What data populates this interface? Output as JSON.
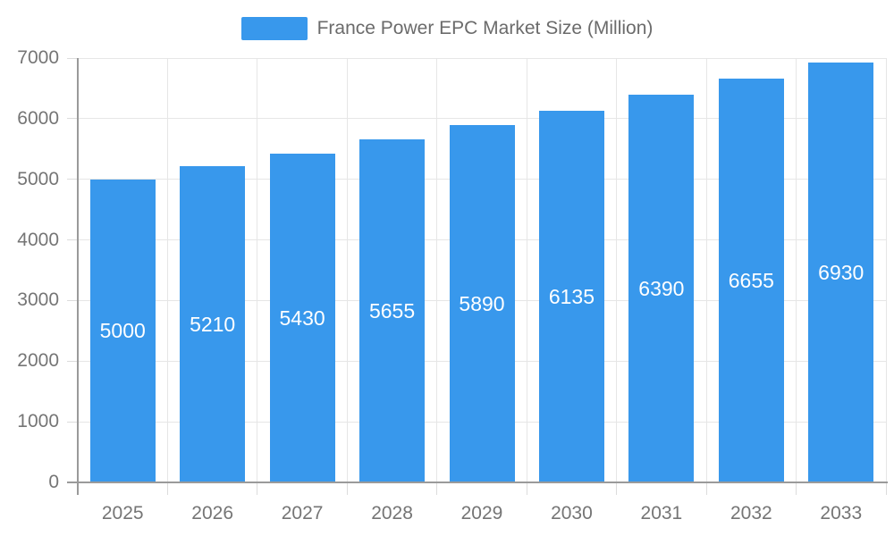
{
  "chart_data": {
    "type": "bar",
    "title": "France Power EPC Market Size (Million)",
    "legend": [
      {
        "label": "France Power EPC Market Size (Million)",
        "color": "#3898EC"
      }
    ],
    "legend_position": "top-center",
    "categories": [
      "2025",
      "2026",
      "2027",
      "2028",
      "2029",
      "2030",
      "2031",
      "2032",
      "2033"
    ],
    "series": [
      {
        "name": "France Power EPC Market Size (Million)",
        "values": [
          5000,
          5210,
          5430,
          5655,
          5890,
          6135,
          6390,
          6655,
          6930
        ]
      }
    ],
    "bar_value_labels": [
      "5000",
      "5210",
      "5430",
      "5655",
      "5890",
      "6135",
      "6390",
      "6655",
      "6930"
    ],
    "xlabel": "",
    "ylabel": "",
    "ylim": [
      0,
      7000
    ],
    "yticks": [
      0,
      1000,
      2000,
      3000,
      4000,
      5000,
      6000,
      7000
    ],
    "grid": true,
    "colors": {
      "bar": "#3898EC",
      "grid_line": "#e6e6e6",
      "tick_mark": "#dcdcdc",
      "axis_line": "#9a9a9a",
      "tick_label": "#757575",
      "bar_value_label": "#ffffff",
      "legend_text": "#6b6b6b",
      "background": "#ffffff"
    }
  }
}
